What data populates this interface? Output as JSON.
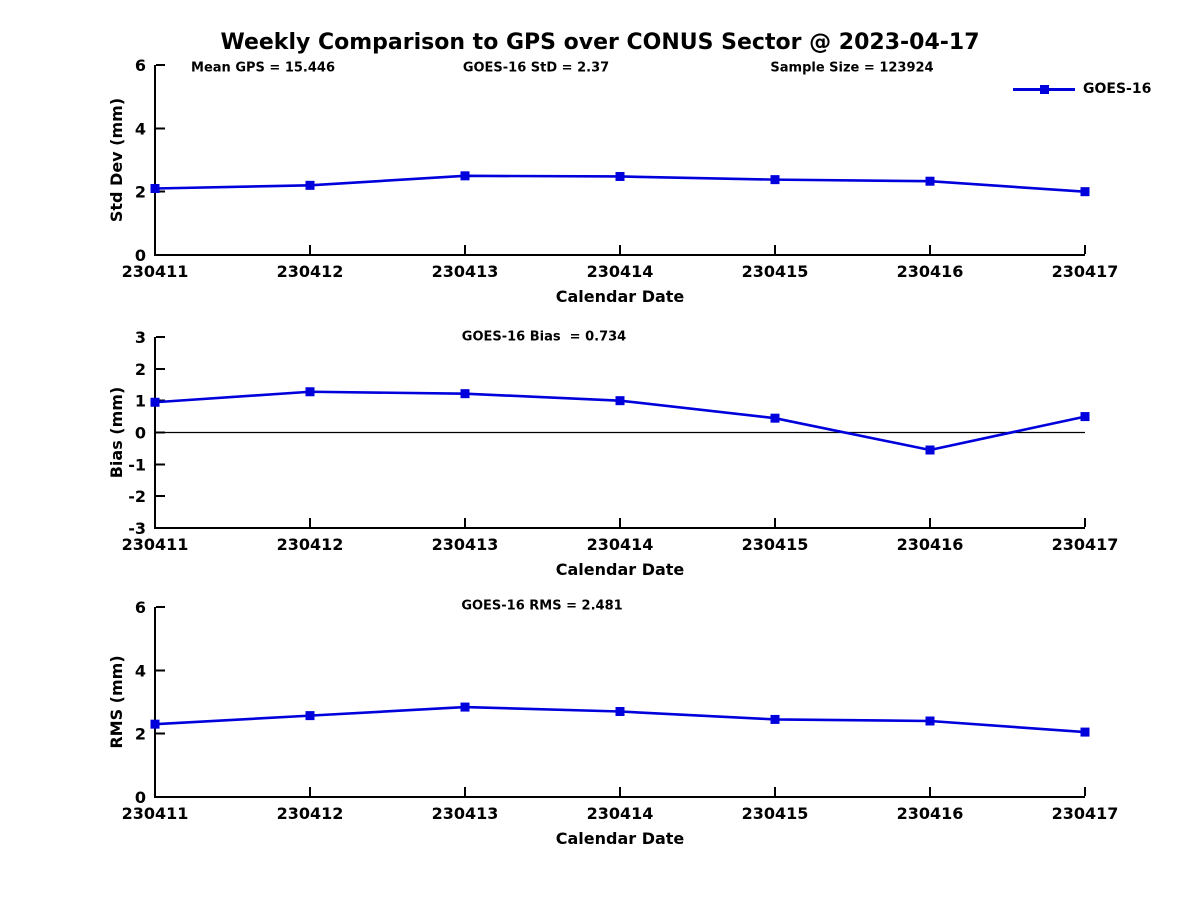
{
  "title": "Weekly Comparison to GPS over CONUS Sector @ 2023-04-17",
  "colors": {
    "series": "#0000dd",
    "axis": "#000000"
  },
  "legend": {
    "label": "GOES-16"
  },
  "annotations": {
    "mean_gps": "Mean GPS = 15.446",
    "goes16_std": "GOES-16 StD = 2.37",
    "sample_size": "Sample Size = 123924",
    "goes16_bias": "GOES-16 Bias  = 0.734",
    "goes16_rms": "GOES-16 RMS = 2.481"
  },
  "chart_data": [
    {
      "type": "line",
      "name": "std-dev",
      "categories": [
        "230411",
        "230412",
        "230413",
        "230414",
        "230415",
        "230416",
        "230417"
      ],
      "series": [
        {
          "name": "GOES-16",
          "values": [
            2.1,
            2.2,
            2.5,
            2.48,
            2.38,
            2.33,
            2.0
          ]
        }
      ],
      "xlabel": "Calendar Date",
      "ylabel": "Std Dev (mm)",
      "ylim": [
        0,
        6
      ],
      "yticks": [
        0,
        2,
        4,
        6
      ],
      "grid": false,
      "zero_line": false,
      "legend_position": "top-right"
    },
    {
      "type": "line",
      "name": "bias",
      "categories": [
        "230411",
        "230412",
        "230413",
        "230414",
        "230415",
        "230416",
        "230417"
      ],
      "series": [
        {
          "name": "GOES-16",
          "values": [
            0.95,
            1.28,
            1.22,
            1.0,
            0.45,
            -0.55,
            0.5
          ]
        }
      ],
      "xlabel": "Calendar Date",
      "ylabel": "Bias (mm)",
      "ylim": [
        -3,
        3
      ],
      "yticks": [
        3,
        2,
        1,
        0,
        -1,
        -2,
        -3
      ],
      "grid": false,
      "zero_line": true,
      "legend_position": "none"
    },
    {
      "type": "line",
      "name": "rms",
      "categories": [
        "230411",
        "230412",
        "230413",
        "230414",
        "230415",
        "230416",
        "230417"
      ],
      "series": [
        {
          "name": "GOES-16",
          "values": [
            2.3,
            2.57,
            2.84,
            2.7,
            2.45,
            2.4,
            2.05
          ]
        }
      ],
      "xlabel": "Calendar Date",
      "ylabel": "RMS (mm)",
      "ylim": [
        0,
        6
      ],
      "yticks": [
        0,
        2,
        4,
        6
      ],
      "grid": false,
      "zero_line": false,
      "legend_position": "none"
    }
  ]
}
